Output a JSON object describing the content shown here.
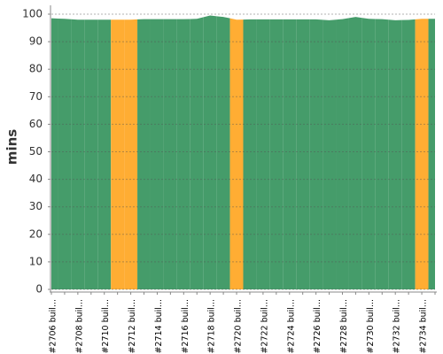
{
  "chart_data": {
    "type": "area",
    "y_label": "mins",
    "categories": [
      "#2706 buil...",
      null,
      "#2708 buil...",
      null,
      "#2710 buil...",
      null,
      "#2712 buil...",
      null,
      "#2714 buil...",
      null,
      "#2716 buil...",
      null,
      "#2718 buil...",
      null,
      "#2720 buil...",
      null,
      "#2722 buil...",
      null,
      "#2724 buil...",
      null,
      "#2726 buil...",
      null,
      "#2728 buil...",
      null,
      "#2730 buil...",
      null,
      "#2732 buil...",
      null,
      "#2734 buil...",
      null
    ],
    "values": [
      98.5,
      98.3,
      98,
      98,
      98,
      98,
      98,
      98.2,
      98.2,
      98.2,
      98.2,
      98.3,
      99.5,
      99,
      98,
      98.1,
      98.1,
      98.1,
      98.1,
      98.1,
      98.1,
      97.8,
      98.2,
      99,
      98.3,
      98.2,
      97.8,
      97.9,
      98.3,
      98.3
    ],
    "point_colors": [
      "#459c6a",
      "#459c6a",
      "#459c6a",
      "#459c6a",
      "#459c6a",
      "#ffad33",
      "#ffad33",
      "#459c6a",
      "#459c6a",
      "#459c6a",
      "#459c6a",
      "#459c6a",
      "#459c6a",
      "#459c6a",
      "#ffad33",
      "#459c6a",
      "#459c6a",
      "#459c6a",
      "#459c6a",
      "#459c6a",
      "#459c6a",
      "#459c6a",
      "#459c6a",
      "#459c6a",
      "#459c6a",
      "#459c6a",
      "#459c6a",
      "#459c6a",
      "#ffad33",
      "#459c6a"
    ],
    "ylim": [
      0,
      100
    ],
    "yticks": [
      0,
      10,
      20,
      30,
      40,
      50,
      60,
      70,
      80,
      90,
      100
    ],
    "grid": true
  }
}
